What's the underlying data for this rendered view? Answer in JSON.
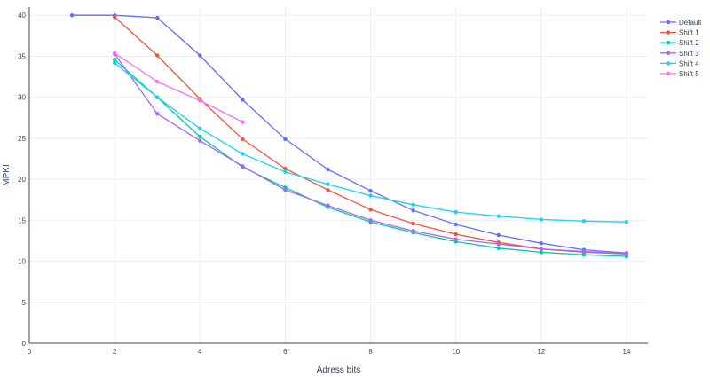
{
  "chart_data": {
    "type": "line",
    "xlabel": "Adress bits",
    "ylabel": "MPKI",
    "xlim": [
      0,
      14.5
    ],
    "ylim": [
      0,
      41
    ],
    "xticks": [
      0,
      2,
      4,
      6,
      8,
      10,
      12,
      14
    ],
    "yticks": [
      0,
      5,
      10,
      15,
      20,
      25,
      30,
      35,
      40
    ],
    "grid": true,
    "legend_position": "top-right",
    "series": [
      {
        "name": "Default",
        "color": "#636efa",
        "x": [
          1,
          2,
          3,
          4,
          5,
          6,
          7,
          8,
          9,
          10,
          11,
          12,
          13,
          14
        ],
        "y": [
          40,
          40,
          39.7,
          35.1,
          29.7,
          24.9,
          21.2,
          18.6,
          16.2,
          14.5,
          13.2,
          12.2,
          11.4,
          11.0
        ]
      },
      {
        "name": "Shift 1",
        "color": "#ef553b",
        "x": [
          2,
          3,
          4,
          5,
          6,
          7,
          8,
          9,
          10,
          11,
          12,
          13,
          14
        ],
        "y": [
          39.8,
          35.1,
          29.8,
          24.9,
          21.3,
          18.7,
          16.3,
          14.6,
          13.3,
          12.3,
          11.5,
          11.1,
          10.9
        ]
      },
      {
        "name": "Shift 2",
        "color": "#00cc96",
        "x": [
          2,
          3,
          4,
          5,
          6,
          7,
          8,
          9,
          10,
          11,
          12,
          13,
          14
        ],
        "y": [
          34.6,
          30.0,
          25.2,
          21.5,
          19.0,
          16.6,
          14.8,
          13.5,
          12.4,
          11.6,
          11.1,
          10.8,
          10.6
        ]
      },
      {
        "name": "Shift 3",
        "color": "#ab63fa",
        "x": [
          2,
          3,
          4,
          5,
          6,
          7,
          8,
          9,
          10,
          11,
          12,
          13,
          14
        ],
        "y": [
          35.3,
          28.0,
          24.7,
          21.6,
          18.7,
          16.8,
          15.0,
          13.7,
          12.7,
          12.1,
          11.5,
          11.2,
          10.9
        ]
      },
      {
        "name": "Shift 4",
        "color": "#19d3f3",
        "x": [
          2,
          3,
          4,
          5,
          6,
          7,
          8,
          9,
          10,
          11,
          12,
          13,
          14
        ],
        "y": [
          34.2,
          30.0,
          26.2,
          23.1,
          20.9,
          19.4,
          18.0,
          16.9,
          16.0,
          15.5,
          15.1,
          14.9,
          14.8
        ]
      },
      {
        "name": "Shift 5",
        "color": "#ff6ef1",
        "x": [
          2,
          3,
          4,
          5
        ],
        "y": [
          35.4,
          31.9,
          29.6,
          27.0
        ]
      }
    ]
  }
}
